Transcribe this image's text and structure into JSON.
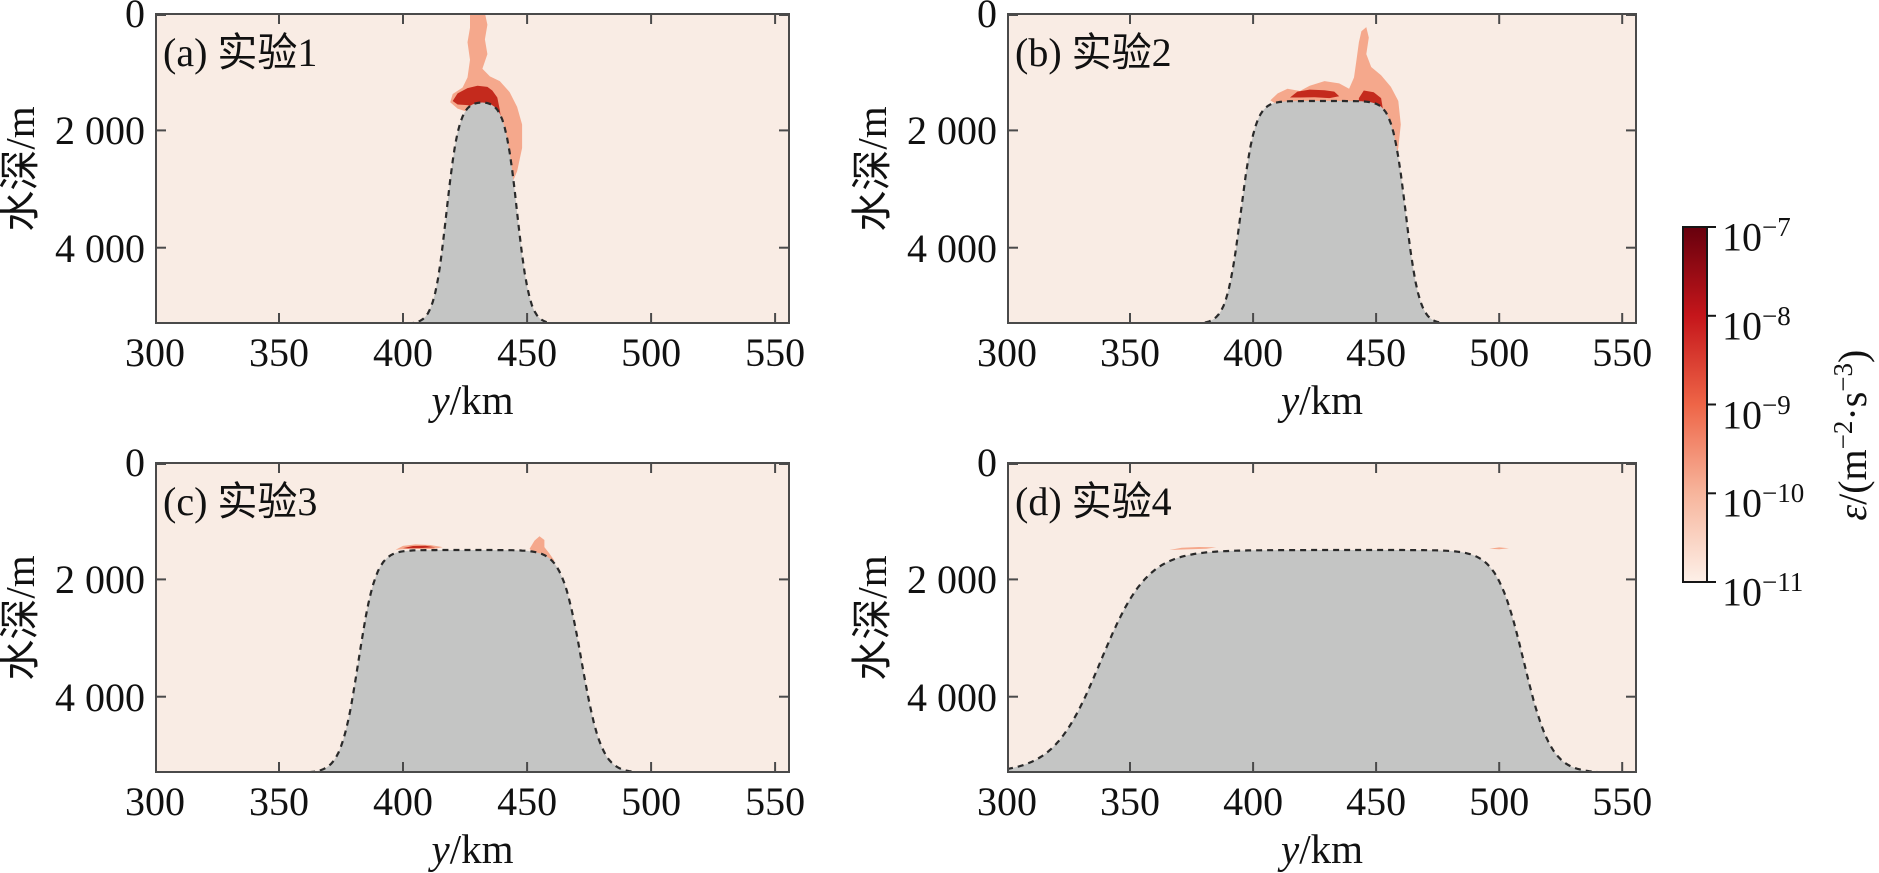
{
  "figure": {
    "description_domain": "four-panel ocean turbulence dissipation section figure"
  },
  "chart_data": {
    "type": "area",
    "xlim": [
      300,
      556
    ],
    "depth_lim_m": [
      0,
      5300
    ],
    "x_ticks_km": [
      300,
      350,
      400,
      450,
      500,
      550
    ],
    "x_tick_labels": [
      "300",
      "350",
      "400",
      "450",
      "500",
      "550"
    ],
    "y_ticks_m": [
      0,
      2000,
      4000
    ],
    "y_tick_labels": [
      "0",
      "2 000",
      "4 000"
    ],
    "xlabel": {
      "var": "y",
      "unit": "/km"
    },
    "ylabel": "水深/m",
    "panels": [
      {
        "id": "a",
        "title": "(a) 实验1",
        "seamount": {
          "top_depth_m": 1500,
          "base_depth_m": 5300,
          "plateau_km": [
            424,
            438
          ],
          "base_km": [
            408,
            455
          ],
          "left_center_km": 417.5,
          "right_center_km": 446,
          "left_width_km": 5,
          "right_width_km": 5
        },
        "patches": {
          "salmon": [
            [
              [
                427,
                0
              ],
              [
                433,
                0
              ],
              [
                434,
                200
              ],
              [
                433,
                450
              ],
              [
                434,
                700
              ],
              [
                432,
                950
              ],
              [
                435,
                1080
              ],
              [
                439,
                1160
              ],
              [
                443,
                1350
              ],
              [
                446,
                1600
              ],
              [
                448,
                1900
              ],
              [
                448,
                2300
              ],
              [
                446,
                2700
              ],
              [
                443,
                3000
              ],
              [
                440,
                3180
              ],
              [
                438,
                3100
              ],
              [
                437,
                2800
              ],
              [
                436,
                2400
              ],
              [
                436,
                2000
              ],
              [
                434,
                1750
              ],
              [
                431,
                1650
              ],
              [
                427,
                1700
              ],
              [
                422,
                1630
              ],
              [
                419,
                1520
              ],
              [
                420,
                1380
              ],
              [
                424,
                1270
              ],
              [
                426,
                1100
              ],
              [
                427,
                800
              ],
              [
                426,
                500
              ],
              [
                427,
                250
              ]
            ]
          ],
          "darkred": [
            [
              [
                420,
                1500
              ],
              [
                422,
                1370
              ],
              [
                426,
                1280
              ],
              [
                430,
                1240
              ],
              [
                434,
                1260
              ],
              [
                436,
                1320
              ],
              [
                438,
                1440
              ],
              [
                439,
                1650
              ],
              [
                440,
                1950
              ],
              [
                440,
                2350
              ],
              [
                439,
                2700
              ],
              [
                438,
                2930
              ],
              [
                437,
                2750
              ],
              [
                436,
                2350
              ],
              [
                435,
                1950
              ],
              [
                434,
                1750
              ],
              [
                431,
                1620
              ],
              [
                426,
                1570
              ],
              [
                422,
                1560
              ]
            ]
          ]
        }
      },
      {
        "id": "b",
        "title": "(b) 实验2",
        "seamount": {
          "top_depth_m": 1500,
          "base_depth_m": 5300,
          "plateau_km": [
            406,
            452
          ],
          "base_km": [
            384,
            472
          ],
          "left_center_km": 395,
          "right_center_km": 462,
          "left_width_km": 5.8,
          "right_width_km": 5.5
        },
        "patches": {
          "salmon": [
            [
              [
                407,
                1490
              ],
              [
                410,
                1370
              ],
              [
                414,
                1290
              ],
              [
                419,
                1330
              ],
              [
                423,
                1240
              ],
              [
                429,
                1160
              ],
              [
                435,
                1200
              ],
              [
                439,
                1290
              ],
              [
                441,
                1100
              ],
              [
                442,
                800
              ],
              [
                443,
                500
              ],
              [
                444,
                310
              ],
              [
                446,
                240
              ],
              [
                447,
                420
              ],
              [
                446,
                700
              ],
              [
                448,
                920
              ],
              [
                452,
                1060
              ],
              [
                456,
                1260
              ],
              [
                459,
                1500
              ],
              [
                460,
                1900
              ],
              [
                459,
                2300
              ],
              [
                457,
                2700
              ],
              [
                455,
                3060
              ],
              [
                453,
                2950
              ],
              [
                452,
                2500
              ],
              [
                451,
                2100
              ],
              [
                449,
                1850
              ],
              [
                445,
                1700
              ],
              [
                439,
                1620
              ],
              [
                431,
                1560
              ],
              [
                423,
                1530
              ],
              [
                414,
                1530
              ],
              [
                409,
                1540
              ]
            ]
          ],
          "darkred": [
            [
              [
                415,
                1440
              ],
              [
                418,
                1340
              ],
              [
                423,
                1305
              ],
              [
                429,
                1315
              ],
              [
                433,
                1340
              ],
              [
                435,
                1420
              ],
              [
                431,
                1450
              ],
              [
                425,
                1435
              ],
              [
                419,
                1440
              ]
            ],
            [
              [
                443,
                1450
              ],
              [
                445,
                1320
              ],
              [
                449,
                1350
              ],
              [
                452,
                1450
              ],
              [
                453,
                1700
              ],
              [
                453,
                2050
              ],
              [
                452,
                2350
              ],
              [
                450,
                2520
              ],
              [
                448,
                2300
              ],
              [
                447,
                2000
              ],
              [
                445,
                1750
              ],
              [
                443,
                1580
              ]
            ]
          ]
        }
      },
      {
        "id": "c",
        "title": "(c) 实验3",
        "seamount": {
          "top_depth_m": 1500,
          "base_depth_m": 5300,
          "plateau_km": [
            395,
            458
          ],
          "base_km": [
            369,
            486
          ],
          "left_center_km": 382,
          "right_center_km": 472,
          "left_width_km": 7,
          "right_width_km": 8
        },
        "patches": {
          "salmon": [
            [
              [
                397,
                1495
              ],
              [
                400,
                1430
              ],
              [
                405,
                1405
              ],
              [
                411,
                1415
              ],
              [
                416,
                1450
              ],
              [
                412,
                1485
              ],
              [
                403,
                1480
              ]
            ],
            [
              [
                451,
                1480
              ],
              [
                453,
                1340
              ],
              [
                455,
                1265
              ],
              [
                457,
                1330
              ],
              [
                457,
                1450
              ],
              [
                459,
                1560
              ],
              [
                461,
                1680
              ],
              [
                459,
                1770
              ],
              [
                456,
                1660
              ],
              [
                453,
                1575
              ]
            ]
          ],
          "darkred": [
            [
              [
                400,
                1468
              ],
              [
                404,
                1432
              ],
              [
                409,
                1428
              ],
              [
                413,
                1452
              ],
              [
                407,
                1468
              ],
              [
                402,
                1472
              ]
            ]
          ]
        }
      },
      {
        "id": "d",
        "title": "(d) 实验4",
        "seamount": {
          "top_depth_m": 1500,
          "base_depth_m": 5300,
          "plateau_km": [
            372,
            490
          ],
          "base_km": [
            303,
            530
          ],
          "left_center_km": 338,
          "right_center_km": 510,
          "left_width_km": 19,
          "right_width_km": 11
        },
        "patches": {
          "salmon": [
            [
              [
                366,
                1500
              ],
              [
                371,
                1460
              ],
              [
                378,
                1448
              ],
              [
                385,
                1455
              ],
              [
                381,
                1478
              ],
              [
                373,
                1490
              ]
            ],
            [
              [
                496,
                1480
              ],
              [
                500,
                1455
              ],
              [
                504,
                1470
              ],
              [
                500,
                1488
              ]
            ]
          ],
          "darkred": []
        }
      }
    ],
    "colorbar": {
      "base": "10",
      "exponents": [
        "−7",
        "−8",
        "−9",
        "−10",
        "−11"
      ],
      "label": {
        "sym": "ε",
        "p1": "/(m",
        "e1": "−2",
        "p2": "·s",
        "e2": "−3",
        "p3": ")"
      }
    },
    "colors": {
      "plot_bg": "#f9ece4",
      "seamount": "#c4c5c4",
      "outline": "#2a2a2a",
      "salmon": "#f5a88c",
      "darkred": "#c42a1d",
      "axis": "#4a4a4a",
      "text": "#111111",
      "colorbar_stops": [
        "#67000d",
        "#c5161b",
        "#ee6547",
        "#f7b59c",
        "#fdf0e8"
      ]
    }
  }
}
